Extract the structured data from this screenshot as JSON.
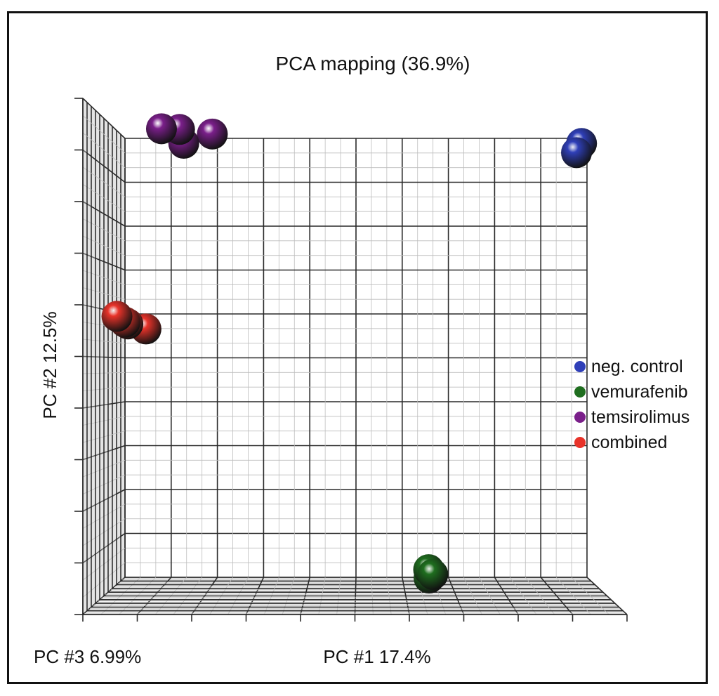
{
  "chart_data": {
    "type": "scatter",
    "projection": "3d",
    "title": "PCA mapping (36.9%)",
    "xlabel": "PC #1 17.4%",
    "ylabel": "PC #2 12.5%",
    "zlabel": "PC #3 6.99%",
    "grid": true,
    "legend_position": "right",
    "series": [
      {
        "name": "neg. control",
        "color": "#2f3fb8",
        "points": [
          {
            "x": 0.99,
            "y": 0.99,
            "z": 0.02
          },
          {
            "x": 0.98,
            "y": 0.97,
            "z": 0.03
          }
        ]
      },
      {
        "name": "vemurafenib",
        "color": "#1f6e1f",
        "points": [
          {
            "x": 0.66,
            "y": 0.02,
            "z": 0.03
          },
          {
            "x": 0.66,
            "y": 0.0,
            "z": 0.02
          },
          {
            "x": 0.67,
            "y": 0.01,
            "z": 0.04
          }
        ]
      },
      {
        "name": "temsirolimus",
        "color": "#7a1f8a",
        "points": [
          {
            "x": 0.12,
            "y": 1.06,
            "z": 0.45
          },
          {
            "x": 0.15,
            "y": 1.05,
            "z": 0.35
          },
          {
            "x": 0.2,
            "y": 1.02,
            "z": 0.12
          },
          {
            "x": 0.15,
            "y": 1.01,
            "z": 0.25
          }
        ]
      },
      {
        "name": "combined",
        "color": "#e8332a",
        "points": [
          {
            "x": 0.01,
            "y": 0.62,
            "z": 0.3
          },
          {
            "x": 0.02,
            "y": 0.6,
            "z": 0.22
          },
          {
            "x": 0.05,
            "y": 0.57,
            "z": 0.05
          },
          {
            "x": 0.02,
            "y": 0.59,
            "z": 0.15
          }
        ]
      }
    ]
  }
}
